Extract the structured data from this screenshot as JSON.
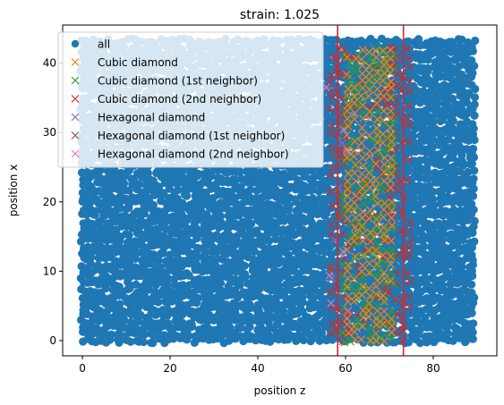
{
  "chart_data": {
    "type": "scatter",
    "title": "strain: 1.025",
    "xlabel": "position z",
    "ylabel": "position x",
    "xlim": [
      -4.5,
      94.5
    ],
    "ylim": [
      -2.2,
      45.5
    ],
    "xticks": [
      0,
      20,
      40,
      60,
      80
    ],
    "yticks": [
      0,
      10,
      20,
      30,
      40
    ],
    "grid": false,
    "legend": {
      "placement": "top-left"
    },
    "vertical_lines": [
      {
        "x": 58.2,
        "color": "#d62728"
      },
      {
        "x": 73.2,
        "color": "#d62728"
      }
    ],
    "series": [
      {
        "name": "all",
        "marker": "circle",
        "color": "#1f77b4",
        "x_range": [
          0,
          89.5
        ],
        "y_range": [
          0,
          43.2
        ],
        "distribution": "dense uniform cloud"
      },
      {
        "name": "Cubic diamond",
        "marker": "x",
        "color": "#ff7f0e",
        "x_range": [
          60,
          71
        ],
        "y_range": [
          0,
          42.5
        ],
        "distribution": "columns"
      },
      {
        "name": "Cubic diamond (1st neighbor)",
        "marker": "x",
        "color": "#2ca02c",
        "x_range": [
          59,
          72
        ],
        "y_range": [
          0,
          42.5
        ],
        "distribution": "columns"
      },
      {
        "name": "Cubic diamond (2nd neighbor)",
        "marker": "x",
        "color": "#d62728",
        "x_range": [
          56,
          75
        ],
        "y_range": [
          0,
          42.5
        ],
        "distribution": "band edges"
      },
      {
        "name": "Hexagonal diamond",
        "marker": "x",
        "color": "#9467bd",
        "x_range": [
          56,
          62
        ],
        "y_range": [
          4,
          30
        ],
        "distribution": "sparse"
      },
      {
        "name": "Hexagonal diamond (1st neighbor)",
        "marker": "x",
        "color": "#8c564b",
        "x_range": [
          56,
          62
        ],
        "y_range": [
          8,
          38
        ],
        "distribution": "sparse"
      },
      {
        "name": "Hexagonal diamond (2nd neighbor)",
        "marker": "x",
        "color": "#e377c2",
        "x_range": [
          55,
          62
        ],
        "y_range": [
          5,
          37
        ],
        "distribution": "sparse"
      }
    ]
  }
}
